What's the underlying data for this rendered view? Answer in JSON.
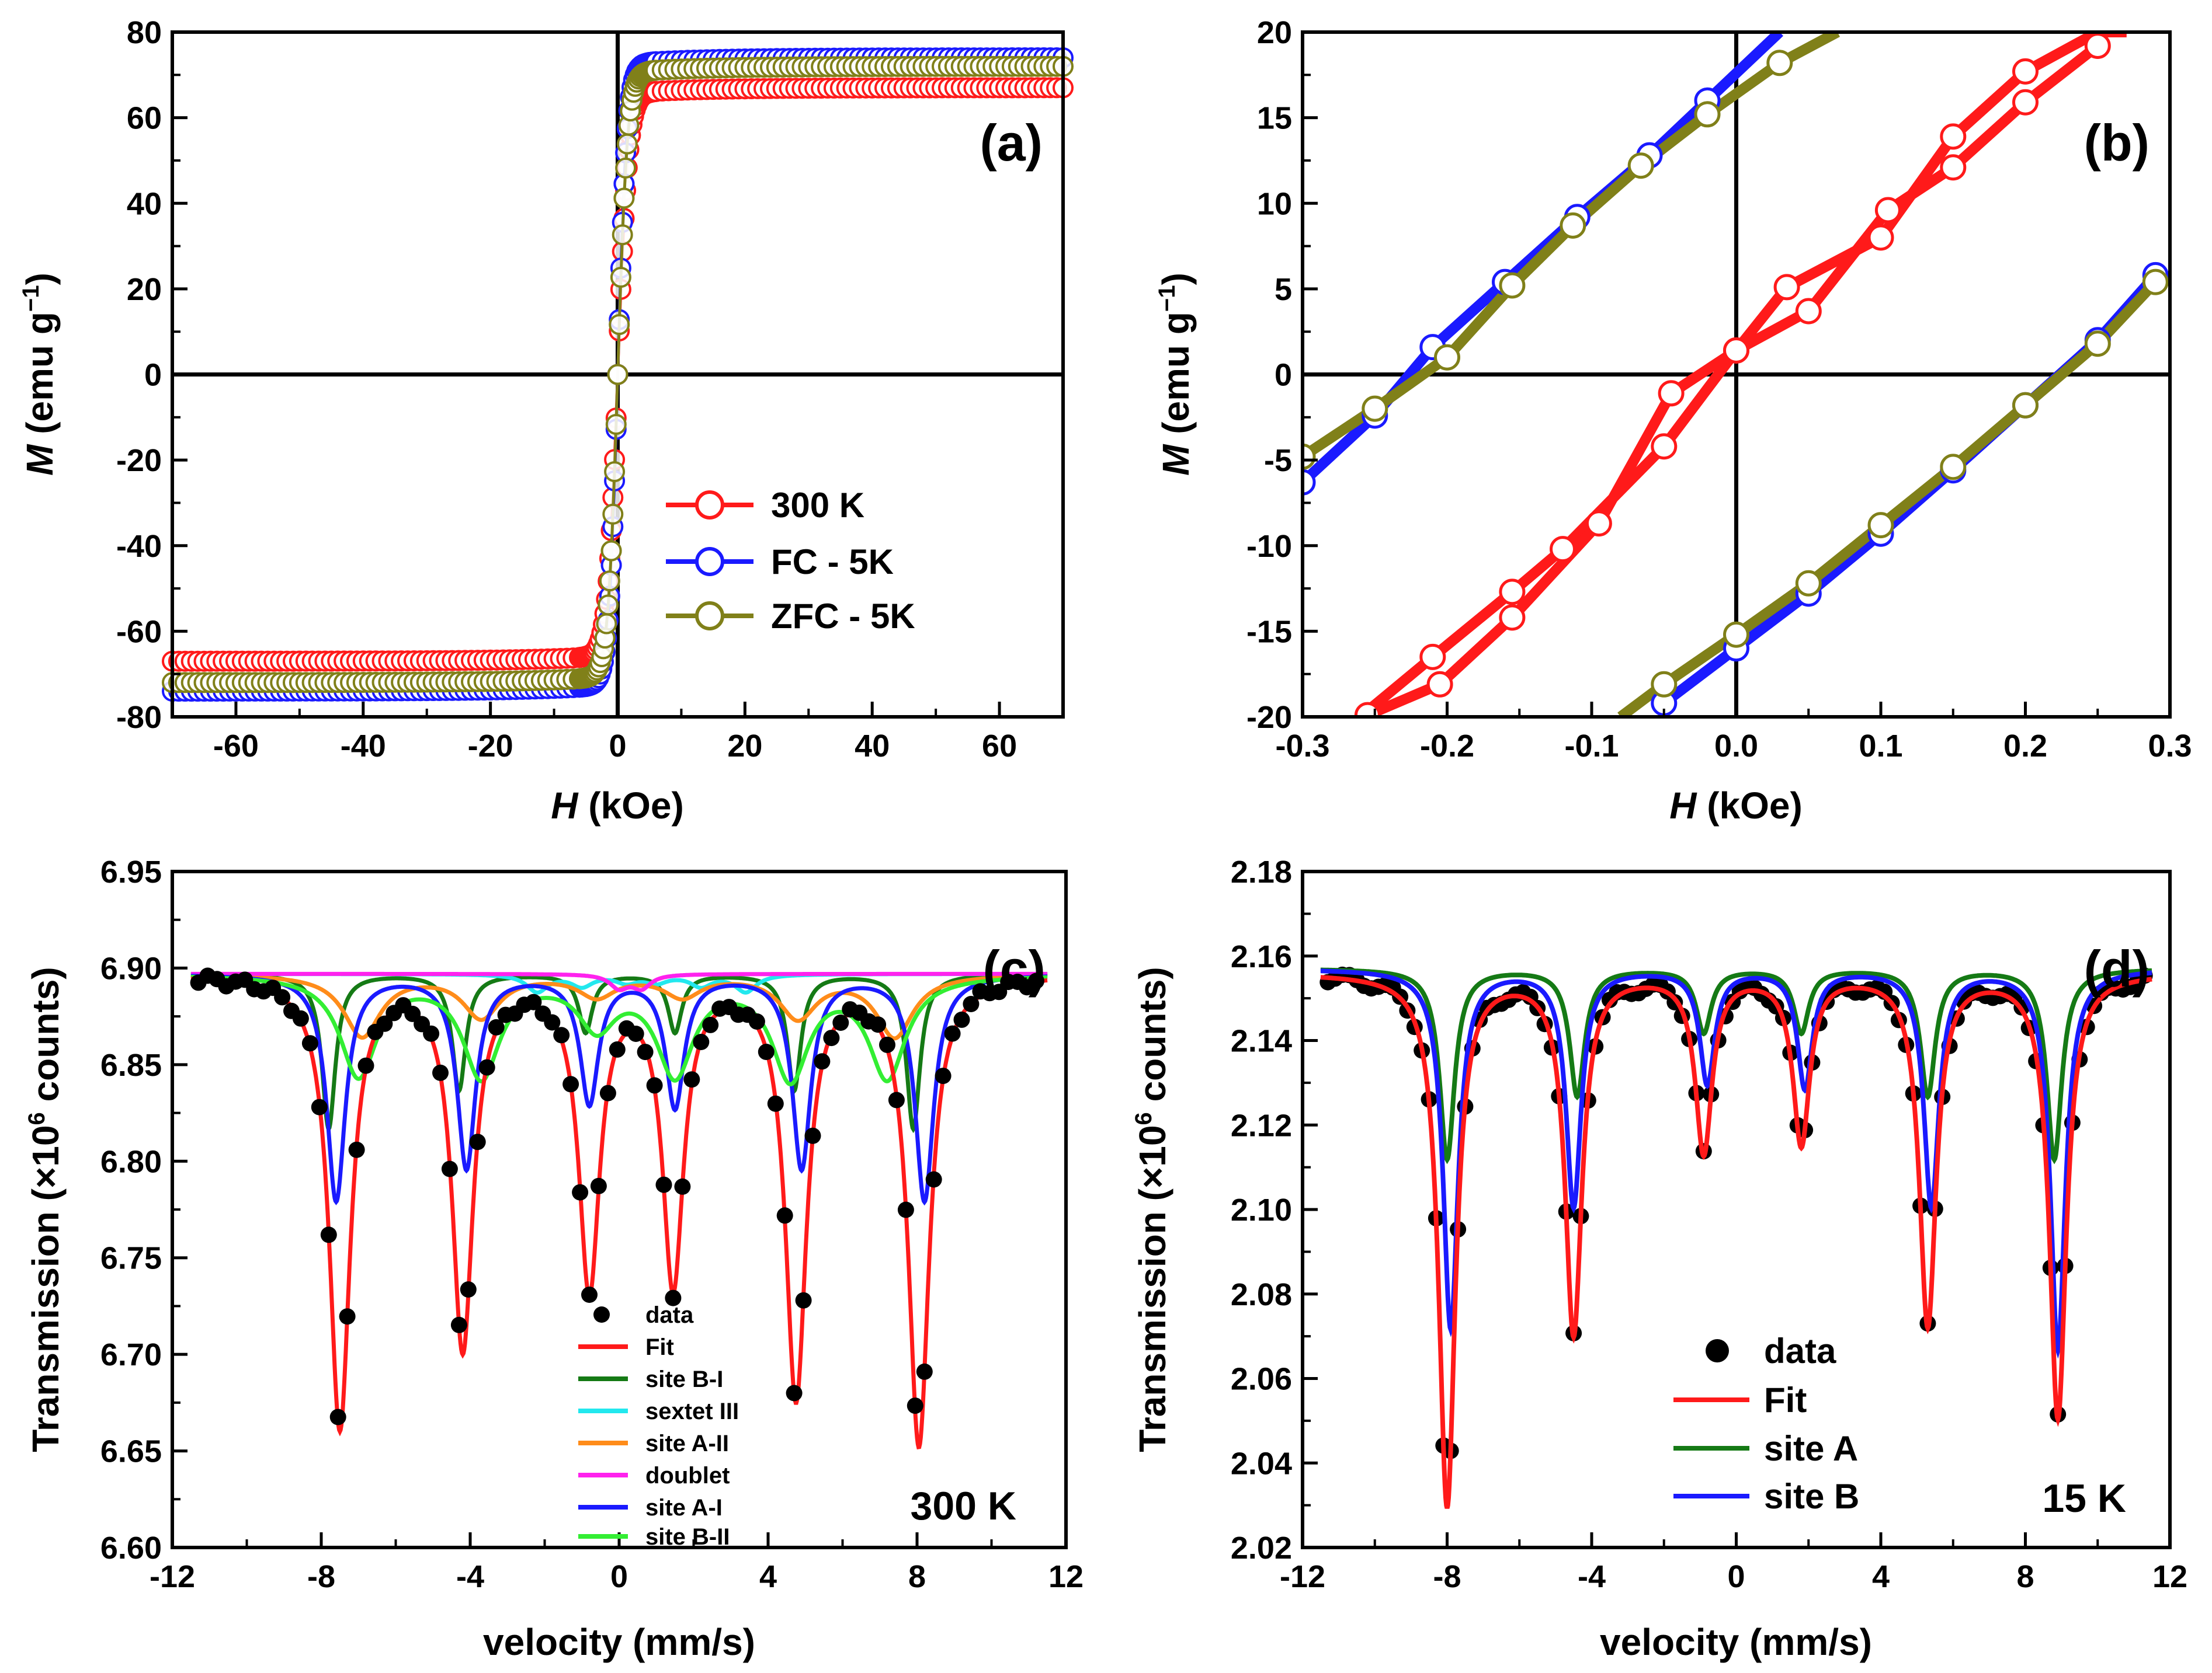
{
  "colors": {
    "red": "#ff1a1a",
    "blue": "#1a1aff",
    "olive": "#808019",
    "green": "#157a15",
    "cyan": "#22e8ee",
    "orange": "#ff8c1a",
    "magenta": "#ff22ee",
    "lime": "#33ee33",
    "black": "#000000"
  },
  "chart_data": [
    {
      "panel": "(a)",
      "type": "scatter",
      "xlabel_italic": "H",
      "xlabel_rest": " (kOe)",
      "ylabel_italic": "M",
      "ylabel_rest": " (emu g",
      "ylabel_sup": "−1",
      "ylabel_end": ")",
      "xlim": [
        -70,
        70
      ],
      "ylim": [
        -80,
        80
      ],
      "xticks": [
        -60,
        -40,
        -20,
        0,
        20,
        40,
        60
      ],
      "yticks": [
        -80,
        -60,
        -40,
        -20,
        0,
        20,
        40,
        60,
        80
      ],
      "series": [
        {
          "name": "300 K",
          "color": "red",
          "Ms": 67,
          "Hs": 1.6
        },
        {
          "name": "FC - 5K",
          "color": "blue",
          "Ms": 74,
          "Hs": 1.4
        },
        {
          "name": "ZFC - 5K",
          "color": "olive",
          "Ms": 72,
          "Hs": 1.5
        }
      ]
    },
    {
      "panel": "(b)",
      "type": "line",
      "xlabel_italic": "H",
      "xlabel_rest": " (kOe)",
      "ylabel_italic": "M",
      "ylabel_rest": " (emu g",
      "ylabel_sup": "−1",
      "ylabel_end": ")",
      "xlim": [
        -0.3,
        0.3
      ],
      "ylim": [
        -20,
        20
      ],
      "xticks": [
        -0.3,
        -0.2,
        -0.1,
        0.0,
        0.1,
        0.2,
        0.3
      ],
      "xtick_labels": [
        "-0.3",
        "-0.2",
        "-0.1",
        "0.0",
        "0.1",
        "0.2",
        "0.3"
      ],
      "yticks": [
        -20,
        -15,
        -10,
        -5,
        0,
        5,
        10,
        15,
        20
      ],
      "series": [
        {
          "name": "FC - 5K upper",
          "color": "blue",
          "x": [
            -0.3,
            -0.25,
            -0.21,
            -0.16,
            -0.11,
            -0.06,
            -0.02,
            0.03
          ],
          "y": [
            -6.3,
            -2.4,
            1.6,
            5.4,
            9.2,
            12.8,
            16.0,
            20.0
          ]
        },
        {
          "name": "FC - 5K lower",
          "color": "blue",
          "x": [
            -0.05,
            0.0,
            0.05,
            0.1,
            0.15,
            0.2,
            0.25,
            0.29
          ],
          "y": [
            -19.2,
            -16.0,
            -12.8,
            -9.3,
            -5.6,
            -1.8,
            2.0,
            5.8
          ]
        },
        {
          "name": "ZFC - 5K upper",
          "color": "olive",
          "x": [
            -0.3,
            -0.25,
            -0.2,
            -0.155,
            -0.113,
            -0.066,
            -0.02,
            0.03,
            0.07
          ],
          "y": [
            -4.8,
            -2.0,
            1.0,
            5.2,
            8.7,
            12.2,
            15.2,
            18.2,
            20.0
          ]
        },
        {
          "name": "ZFC - 5K lower",
          "color": "olive",
          "x": [
            -0.08,
            -0.05,
            0.0,
            0.05,
            0.1,
            0.15,
            0.2,
            0.25,
            0.29
          ],
          "y": [
            -20.0,
            -18.1,
            -15.2,
            -12.2,
            -8.8,
            -5.4,
            -1.8,
            1.8,
            5.4
          ]
        },
        {
          "name": "300 K branch 1",
          "color": "red",
          "x": [
            -0.26,
            -0.21,
            -0.155,
            -0.12,
            -0.05,
            0.0,
            0.035,
            0.1,
            0.15,
            0.2,
            0.25,
            0.27
          ],
          "y": [
            -20.0,
            -16.5,
            -12.7,
            -10.2,
            -4.2,
            1.4,
            5.1,
            8.0,
            13.9,
            17.7,
            20.0,
            20.0
          ]
        },
        {
          "name": "300 K branch 2",
          "color": "red",
          "x": [
            -0.26,
            -0.255,
            -0.205,
            -0.155,
            -0.095,
            -0.045,
            0.0,
            0.05,
            0.105,
            0.15,
            0.2,
            0.25
          ],
          "y": [
            -20.0,
            -19.9,
            -18.1,
            -14.2,
            -8.7,
            -1.1,
            1.4,
            3.7,
            9.6,
            12.1,
            15.9,
            19.2
          ]
        }
      ]
    },
    {
      "panel": "(c)",
      "type": "line",
      "temperature": "300 K",
      "xlabel": "velocity (mm/s)",
      "ylabel_pre": "Transmission (×10",
      "ylabel_sup": "6",
      "ylabel_post": " counts)",
      "xlim": [
        -12,
        12
      ],
      "ylim": [
        6.6,
        6.95
      ],
      "xticks": [
        -12,
        -8,
        -4,
        0,
        4,
        8,
        12
      ],
      "yticks": [
        6.6,
        6.65,
        6.7,
        6.75,
        6.8,
        6.85,
        6.9,
        6.95
      ],
      "ytick_labels": [
        "6.60",
        "6.65",
        "6.70",
        "6.75",
        "6.80",
        "6.85",
        "6.90",
        "6.95"
      ],
      "baseline": 6.897,
      "legend": [
        "data",
        "Fit",
        "site B-I",
        "sextet III",
        "site A-II",
        "doublet",
        "site A-I",
        "site B-II"
      ],
      "components": [
        {
          "name": "site B-I",
          "color": "green",
          "peaks": [
            [
              -7.8,
              0.08
            ],
            [
              -4.3,
              0.06
            ],
            [
              -0.9,
              0.03
            ],
            [
              1.5,
              0.03
            ],
            [
              4.7,
              0.06
            ],
            [
              7.9,
              0.08
            ]
          ],
          "width": 0.22
        },
        {
          "name": "sextet III",
          "color": "cyan",
          "peaks": [
            [
              -2.2,
              0.009
            ],
            [
              -1.0,
              0.006
            ],
            [
              0.2,
              0.004
            ],
            [
              1.0,
              0.004
            ],
            [
              2.2,
              0.006
            ],
            [
              3.4,
              0.009
            ]
          ],
          "width": 0.35
        },
        {
          "name": "site A-II",
          "color": "orange",
          "peaks": [
            [
              -6.9,
              0.032
            ],
            [
              -3.7,
              0.022
            ],
            [
              -0.6,
              0.011
            ],
            [
              1.7,
              0.011
            ],
            [
              4.8,
              0.022
            ],
            [
              7.4,
              0.032
            ]
          ],
          "width": 0.6
        },
        {
          "name": "doublet",
          "color": "magenta",
          "peaks": [
            [
              0.0,
              0.007
            ],
            [
              0.6,
              0.007
            ]
          ],
          "width": 0.3
        },
        {
          "name": "site A-I",
          "color": "blue",
          "peaks": [
            [
              -7.6,
              0.117
            ],
            [
              -4.1,
              0.1
            ],
            [
              -0.8,
              0.066
            ],
            [
              1.5,
              0.068
            ],
            [
              4.9,
              0.1
            ],
            [
              8.2,
              0.117
            ]
          ],
          "width": 0.3
        },
        {
          "name": "site B-II",
          "color": "lime",
          "peaks": [
            [
              -7.0,
              0.052
            ],
            [
              -3.7,
              0.052
            ],
            [
              -0.6,
              0.025
            ],
            [
              1.5,
              0.05
            ],
            [
              4.6,
              0.052
            ],
            [
              7.2,
              0.052
            ]
          ],
          "width": 0.6
        }
      ],
      "fit": {
        "name": "Fit",
        "color": "red",
        "peaks": [
          [
            -7.5,
            0.234
          ],
          [
            -4.2,
            0.192
          ],
          [
            -0.8,
            0.16
          ],
          [
            1.45,
            0.158
          ],
          [
            4.75,
            0.217
          ],
          [
            8.05,
            0.242
          ]
        ],
        "width": 0.34,
        "base": 6.897
      }
    },
    {
      "panel": "(d)",
      "type": "line",
      "temperature": "15 K",
      "xlabel": "velocity (mm/s)",
      "ylabel_pre": "Transmission (×10",
      "ylabel_sup": "6",
      "ylabel_post": " counts)",
      "xlim": [
        -12,
        12
      ],
      "ylim": [
        2.02,
        2.18
      ],
      "xticks": [
        -12,
        -8,
        -4,
        0,
        4,
        8,
        12
      ],
      "yticks": [
        2.02,
        2.04,
        2.06,
        2.08,
        2.1,
        2.12,
        2.14,
        2.16,
        2.18
      ],
      "ytick_labels": [
        "2.02",
        "2.04",
        "2.06",
        "2.08",
        "2.10",
        "2.12",
        "2.14",
        "2.16",
        "2.18"
      ],
      "legend": [
        "data",
        "Fit",
        "site A",
        "site B"
      ],
      "components": [
        {
          "name": "site A",
          "color": "green",
          "base": 2.157,
          "peaks": [
            [
              -8.0,
              0.045
            ],
            [
              -4.4,
              0.03
            ],
            [
              -0.9,
              0.015
            ],
            [
              1.8,
              0.015
            ],
            [
              5.3,
              0.03
            ],
            [
              8.8,
              0.045
            ]
          ],
          "width": 0.25
        },
        {
          "name": "site B",
          "color": "blue",
          "base": 2.157,
          "peaks": [
            [
              -7.9,
              0.085
            ],
            [
              -4.5,
              0.056
            ],
            [
              -0.8,
              0.027
            ],
            [
              1.9,
              0.028
            ],
            [
              5.4,
              0.056
            ],
            [
              8.9,
              0.09
            ]
          ],
          "width": 0.25
        }
      ],
      "fit": {
        "name": "Fit",
        "color": "red",
        "base": 2.156,
        "peaks": [
          [
            -8.0,
            0.126
          ],
          [
            -4.5,
            0.085
          ],
          [
            -0.9,
            0.042
          ],
          [
            1.8,
            0.04
          ],
          [
            5.3,
            0.083
          ],
          [
            8.9,
            0.105
          ]
        ],
        "width": 0.28
      }
    }
  ]
}
